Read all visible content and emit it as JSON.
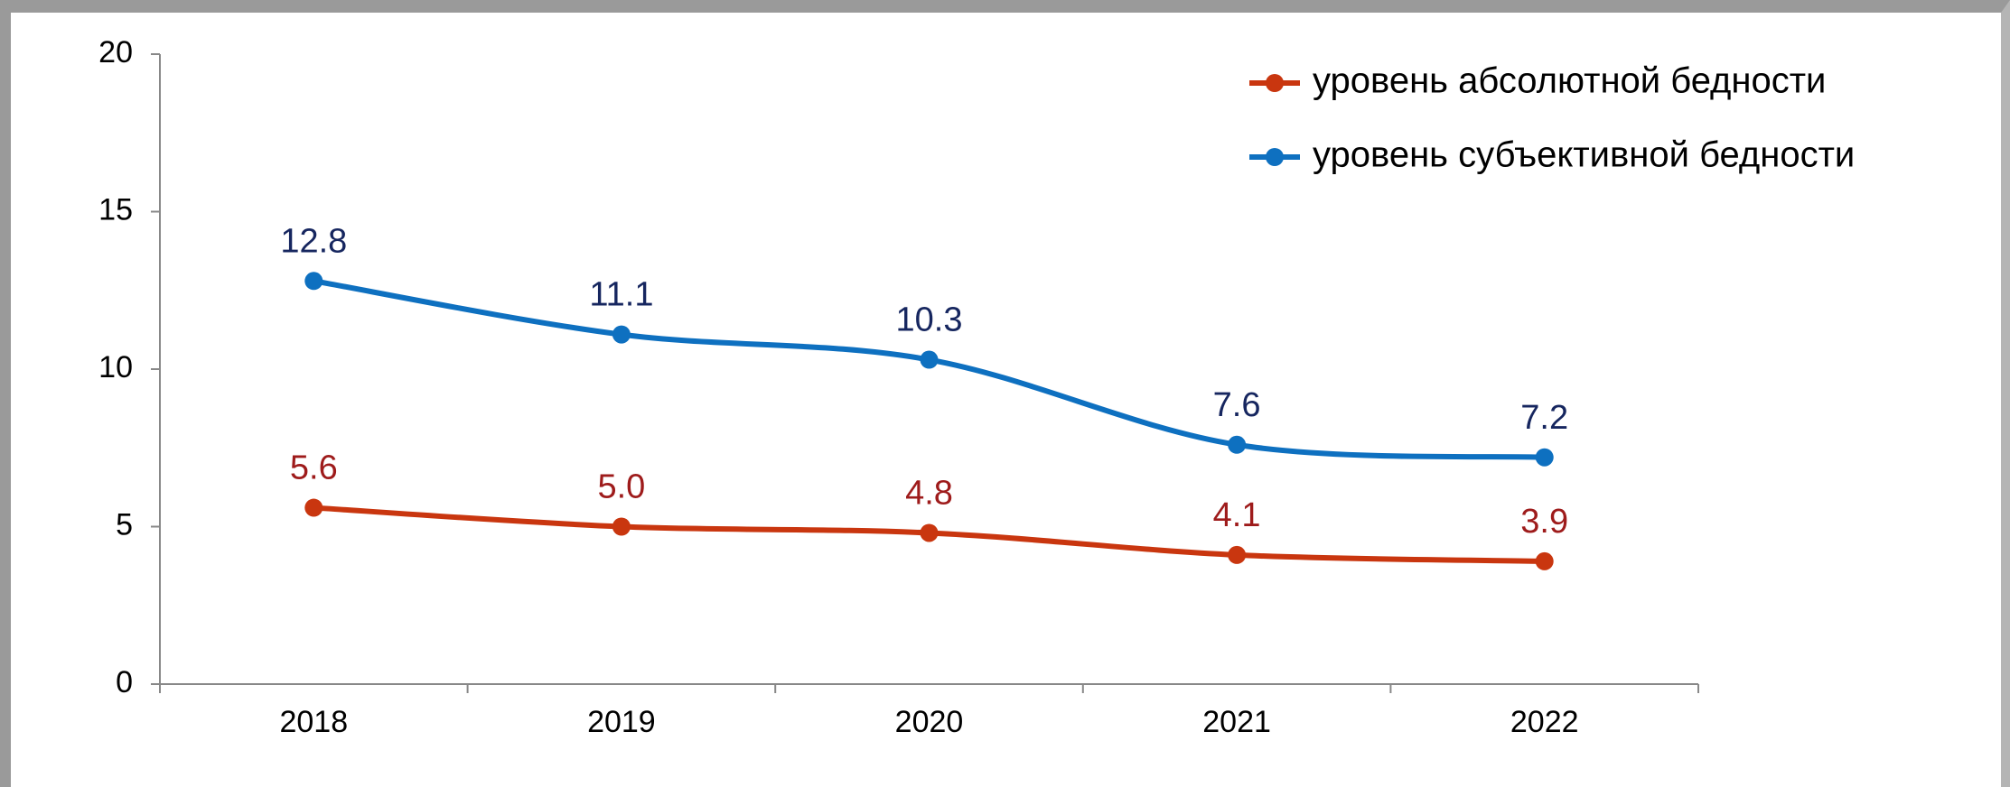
{
  "chart_data": {
    "type": "line",
    "categories": [
      "2018",
      "2019",
      "2020",
      "2021",
      "2022"
    ],
    "series": [
      {
        "name": "уровень абсолютной бедности",
        "color": "#c9360f",
        "label_color": "#9e1b1b",
        "values": [
          5.6,
          5.0,
          4.8,
          4.1,
          3.9
        ],
        "value_labels": [
          "5.6",
          "5.0",
          "4.8",
          "4.1",
          "3.9"
        ]
      },
      {
        "name": "уровень субъективной бедности",
        "color": "#0e70c0",
        "label_color": "#16265f",
        "values": [
          12.8,
          11.1,
          10.3,
          7.6,
          7.2
        ],
        "value_labels": [
          "12.8",
          "11.1",
          "10.3",
          "7.6",
          "7.2"
        ]
      }
    ],
    "ylim": [
      0,
      20
    ],
    "yticks": [
      0,
      5,
      10,
      15,
      20
    ],
    "grid": false,
    "smooth": true,
    "legend": "upper right"
  }
}
